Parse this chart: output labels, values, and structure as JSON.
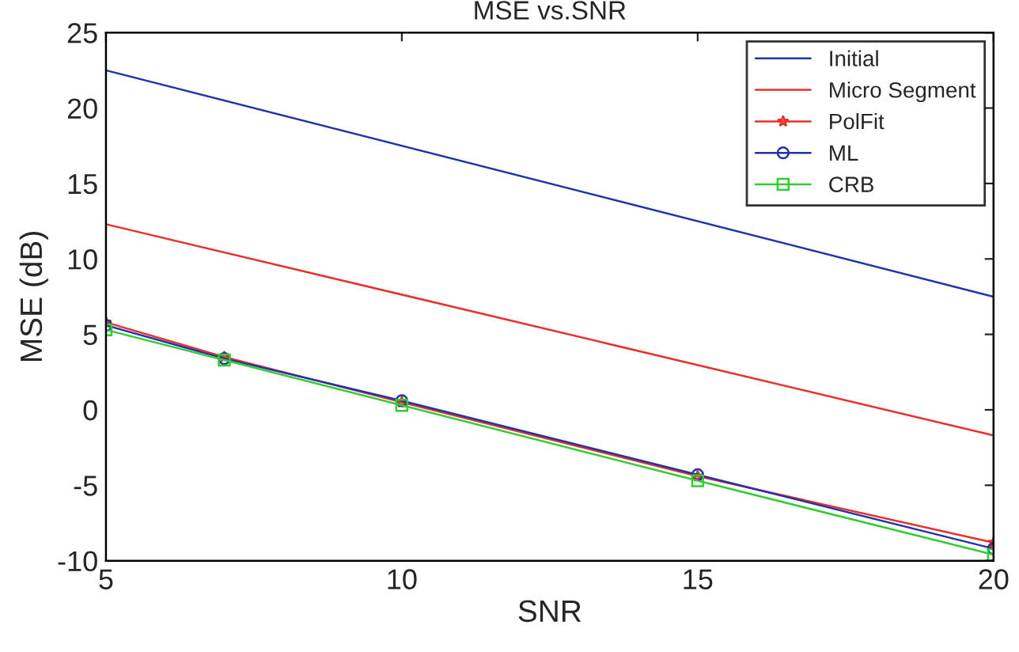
{
  "chart_data": {
    "type": "line",
    "title": "MSE vs.SNR",
    "xlabel": "SNR",
    "ylabel": "MSE (dB)",
    "xlim": [
      5,
      20
    ],
    "xticks": [
      5,
      10,
      15,
      20
    ],
    "ylim": [
      -10,
      25
    ],
    "yticks": [
      -10,
      -5,
      0,
      5,
      10,
      15,
      20,
      25
    ],
    "grid": false,
    "legend": "top right",
    "series": [
      {
        "name": "Initial",
        "color": "#2233aa",
        "x": [
          5,
          20
        ],
        "values": [
          22.5,
          7.5
        ],
        "marker": "none"
      },
      {
        "name": "Micro Segment",
        "color": "#e8312a",
        "x": [
          5,
          20
        ],
        "values": [
          12.3,
          -1.7
        ],
        "marker": "none"
      },
      {
        "name": "PolFit",
        "color": "#e8312a",
        "x": [
          5,
          7,
          10,
          15,
          20
        ],
        "values": [
          5.8,
          3.5,
          0.5,
          -4.4,
          -8.8
        ],
        "marker": "star"
      },
      {
        "name": "ML",
        "color": "#2233aa",
        "x": [
          5,
          7,
          10,
          15,
          20
        ],
        "values": [
          5.6,
          3.4,
          0.6,
          -4.3,
          -9.2
        ],
        "marker": "circle"
      },
      {
        "name": "CRB",
        "color": "#33cc33",
        "x": [
          5,
          7,
          10,
          15,
          20
        ],
        "values": [
          5.3,
          3.3,
          0.3,
          -4.7,
          -9.6
        ],
        "marker": "square"
      }
    ]
  }
}
